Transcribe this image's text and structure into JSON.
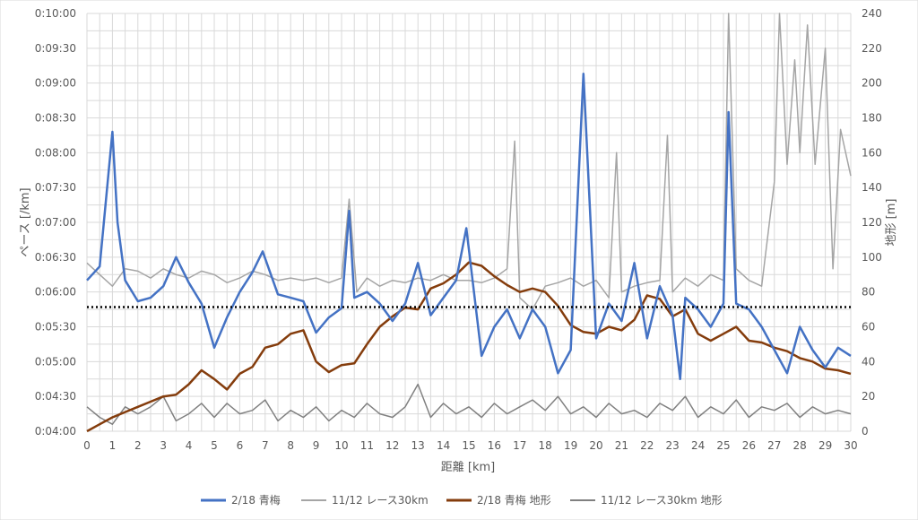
{
  "chart_data": {
    "type": "line",
    "xlabel": "距離 [km]",
    "ylabel_left": "ペース [/km]",
    "ylabel_right": "地形 [m]",
    "x_range": [
      0,
      30
    ],
    "x_ticks": [
      "0",
      "1",
      "2",
      "3",
      "4",
      "5",
      "6",
      "7",
      "8",
      "9",
      "10",
      "11",
      "12",
      "13",
      "14",
      "15",
      "16",
      "17",
      "18",
      "19",
      "20",
      "21",
      "22",
      "23",
      "24",
      "25",
      "26",
      "27",
      "28",
      "29",
      "30"
    ],
    "y_left_range_seconds": [
      240,
      600
    ],
    "y_left_ticks": [
      "0:04:00",
      "0:04:30",
      "0:05:00",
      "0:05:30",
      "0:06:00",
      "0:06:30",
      "0:07:00",
      "0:07:30",
      "0:08:00",
      "0:08:30",
      "0:09:00",
      "0:09:30",
      "0:10:00"
    ],
    "y_right_range": [
      0,
      240
    ],
    "y_right_ticks": [
      "0",
      "20",
      "40",
      "60",
      "80",
      "100",
      "120",
      "140",
      "160",
      "180",
      "200",
      "220",
      "240"
    ],
    "grid": true,
    "reference_line": {
      "axis": "left",
      "value_seconds": 347,
      "style": "dotted",
      "color": "#000000"
    },
    "legend_position": "bottom",
    "series": [
      {
        "name": "2/18 青梅",
        "axis": "left",
        "color": "#4472C4",
        "width": 2.5,
        "x": [
          0,
          0.5,
          1.0,
          1.2,
          1.5,
          2.0,
          2.5,
          3.0,
          3.5,
          4.0,
          4.5,
          5.0,
          5.5,
          6.0,
          6.5,
          6.9,
          7.5,
          8.0,
          8.5,
          9.0,
          9.5,
          10.0,
          10.3,
          10.5,
          11.0,
          11.5,
          12.0,
          12.5,
          13.0,
          13.5,
          14.0,
          14.5,
          14.9,
          15.5,
          16.0,
          16.5,
          17.0,
          17.5,
          18.0,
          18.5,
          19.0,
          19.5,
          20.0,
          20.5,
          21.0,
          21.5,
          22.0,
          22.5,
          23.0,
          23.3,
          23.5,
          24.0,
          24.5,
          25.0,
          25.2,
          25.5,
          26.0,
          26.5,
          27.0,
          27.5,
          28.0,
          28.5,
          29.0,
          29.5,
          30.0
        ],
        "y": [
          370,
          382,
          498,
          420,
          370,
          352,
          355,
          365,
          390,
          368,
          350,
          312,
          338,
          360,
          377,
          395,
          358,
          355,
          352,
          325,
          338,
          346,
          430,
          355,
          360,
          350,
          335,
          350,
          385,
          340,
          355,
          370,
          415,
          305,
          330,
          345,
          320,
          345,
          330,
          290,
          310,
          548,
          320,
          350,
          335,
          385,
          320,
          365,
          340,
          285,
          355,
          345,
          330,
          350,
          515,
          350,
          345,
          330,
          310,
          290,
          330,
          310,
          295,
          312,
          305
        ]
      },
      {
        "name": "11/12 レース30km",
        "axis": "left",
        "color": "#A5A5A5",
        "width": 1.5,
        "x": [
          0,
          0.5,
          1.0,
          1.5,
          2.0,
          2.5,
          3.0,
          3.5,
          4.0,
          4.5,
          5.0,
          5.5,
          6.0,
          6.5,
          7.0,
          7.5,
          8.0,
          8.5,
          9.0,
          9.5,
          10.0,
          10.3,
          10.6,
          11.0,
          11.5,
          12.0,
          12.5,
          13.0,
          13.5,
          14.0,
          14.5,
          15.0,
          15.5,
          16.0,
          16.5,
          16.8,
          17.0,
          17.5,
          18.0,
          18.5,
          19.0,
          19.5,
          20.0,
          20.5,
          20.8,
          21.0,
          21.5,
          22.0,
          22.5,
          22.8,
          23.0,
          23.5,
          24.0,
          24.5,
          25.0,
          25.2,
          25.5,
          26.0,
          26.5,
          27.0,
          27.2,
          27.5,
          27.8,
          28.0,
          28.3,
          28.6,
          29.0,
          29.3,
          29.6,
          30.0
        ],
        "y": [
          385,
          375,
          365,
          380,
          378,
          372,
          380,
          375,
          372,
          378,
          375,
          368,
          372,
          378,
          375,
          370,
          372,
          370,
          372,
          368,
          372,
          440,
          360,
          372,
          365,
          370,
          368,
          372,
          370,
          375,
          370,
          370,
          368,
          372,
          380,
          490,
          355,
          345,
          365,
          368,
          372,
          365,
          370,
          355,
          480,
          360,
          365,
          368,
          370,
          495,
          360,
          372,
          365,
          375,
          370,
          600,
          380,
          370,
          365,
          455,
          600,
          470,
          560,
          480,
          590,
          470,
          570,
          380,
          500,
          460
        ]
      },
      {
        "name": "2/18 青梅 地形",
        "axis": "right",
        "color": "#843C0C",
        "width": 2.5,
        "x": [
          0,
          0.5,
          1.0,
          1.5,
          2.0,
          2.5,
          3.0,
          3.5,
          4.0,
          4.5,
          5.0,
          5.5,
          6.0,
          6.5,
          7.0,
          7.5,
          8.0,
          8.5,
          9.0,
          9.5,
          10.0,
          10.5,
          11.0,
          11.5,
          12.0,
          12.5,
          13.0,
          13.5,
          14.0,
          14.5,
          15.0,
          15.5,
          16.0,
          16.5,
          17.0,
          17.5,
          18.0,
          18.5,
          19.0,
          19.5,
          20.0,
          20.5,
          21.0,
          21.5,
          22.0,
          22.5,
          23.0,
          23.5,
          24.0,
          24.5,
          25.0,
          25.5,
          26.0,
          26.5,
          27.0,
          27.5,
          28.0,
          28.5,
          29.0,
          29.5,
          30.0
        ],
        "y": [
          0,
          4,
          8,
          11,
          14,
          17,
          20,
          21,
          27,
          35,
          30,
          24,
          33,
          37,
          48,
          50,
          56,
          58,
          40,
          34,
          38,
          39,
          50,
          60,
          66,
          71,
          70,
          82,
          85,
          90,
          97,
          95,
          89,
          84,
          80,
          82,
          80,
          72,
          61,
          57,
          56,
          60,
          58,
          64,
          78,
          76,
          66,
          70,
          56,
          52,
          56,
          60,
          52,
          51,
          48,
          46,
          42,
          40,
          36,
          35,
          33
        ]
      },
      {
        "name": "11/12 レース30km 地形",
        "axis": "right",
        "color": "#808080",
        "width": 1.5,
        "x": [
          0,
          0.5,
          1.0,
          1.5,
          2.0,
          2.5,
          3.0,
          3.5,
          4.0,
          4.5,
          5.0,
          5.5,
          6.0,
          6.5,
          7.0,
          7.5,
          8.0,
          8.5,
          9.0,
          9.5,
          10.0,
          10.5,
          11.0,
          11.5,
          12.0,
          12.5,
          13.0,
          13.5,
          14.0,
          14.5,
          15.0,
          15.5,
          16.0,
          16.5,
          17.0,
          17.5,
          18.0,
          18.5,
          19.0,
          19.5,
          20.0,
          20.5,
          21.0,
          21.5,
          22.0,
          22.5,
          23.0,
          23.5,
          24.0,
          24.5,
          25.0,
          25.5,
          26.0,
          26.5,
          27.0,
          27.5,
          28.0,
          28.5,
          29.0,
          29.5,
          30.0
        ],
        "y": [
          14,
          8,
          4,
          14,
          10,
          14,
          20,
          6,
          10,
          16,
          8,
          16,
          10,
          12,
          18,
          6,
          12,
          8,
          14,
          6,
          12,
          8,
          16,
          10,
          8,
          14,
          27,
          8,
          16,
          10,
          14,
          8,
          16,
          10,
          14,
          18,
          12,
          20,
          10,
          14,
          8,
          16,
          10,
          12,
          8,
          16,
          12,
          20,
          8,
          14,
          10,
          18,
          8,
          14,
          12,
          16,
          8,
          14,
          10,
          12,
          10
        ]
      }
    ]
  }
}
